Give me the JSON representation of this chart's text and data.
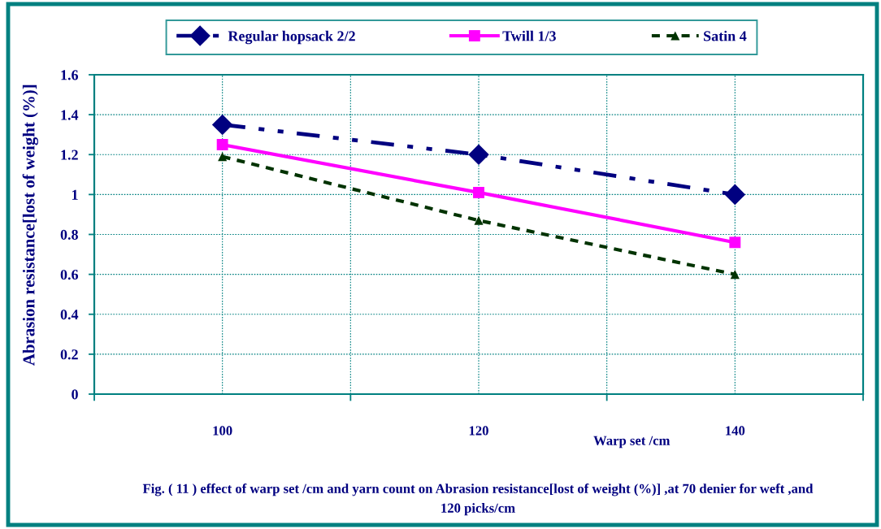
{
  "chart_data": {
    "type": "line",
    "x": [
      100,
      120,
      140
    ],
    "xlabel": "Warp set /cm",
    "ylabel": "Abrasion resistance[lost of weight (%)]",
    "xlim": [
      90,
      150
    ],
    "xticks": [
      {
        "value": 90,
        "label": null
      },
      100,
      {
        "value": 110,
        "label": null
      },
      120,
      {
        "value": 130,
        "label": null
      },
      140,
      {
        "value": 150,
        "label": null
      }
    ],
    "ylim": [
      0,
      1.6
    ],
    "yticks": [
      0,
      0.2,
      0.4,
      0.6,
      0.8,
      1,
      1.2,
      1.4,
      1.6
    ],
    "grid": true,
    "legend": "top",
    "series": [
      {
        "name": "Regular hopsack 2/2",
        "color": "#000080",
        "values": [
          1.35,
          1.2,
          1.0
        ],
        "marker": "diamond",
        "line_style": "dashed"
      },
      {
        "name": "Twill 1/3",
        "color": "#ff00ff",
        "values": [
          1.25,
          1.01,
          0.76
        ],
        "marker": "square",
        "line_style": "solid"
      },
      {
        "name": "Satin 4",
        "color": "#003300",
        "values": [
          1.19,
          0.87,
          0.6
        ],
        "marker": "triangle",
        "line_style": "dotted"
      }
    ],
    "annotations": [
      "Fig. ( 11 ) effect of warp set /cm and yarn count on Abrasion resistance[lost of weight (%)] ,at 70 denier for weft ,and\n120 picks/cm"
    ]
  }
}
